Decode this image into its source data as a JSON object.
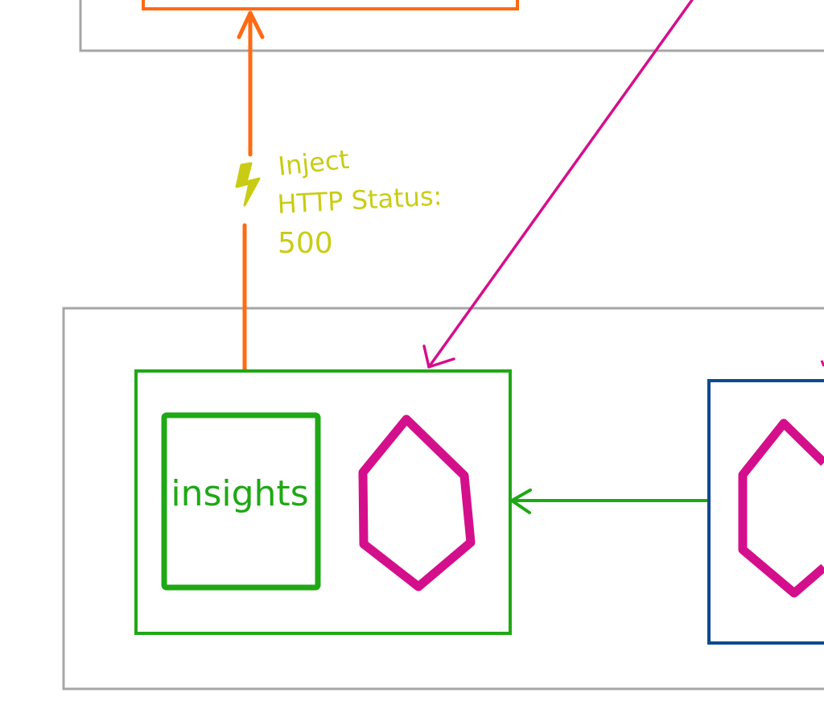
{
  "diagram": {
    "colors": {
      "container_border": "#a6a6a6",
      "request_arrow": "#ff6a13",
      "fault_label": "#c9cc14",
      "service_green": "#1fa815",
      "service_blue": "#0e4a8f",
      "pod_hexagon": "#d40f8c",
      "pink_arrow": "#d40f8c"
    },
    "fault_injection": {
      "icon": "lightning-bolt-icon",
      "label_line1": "Inject",
      "label_line2": "HTTP Status:",
      "label_line3": "500"
    },
    "insights_service": {
      "label": "insights",
      "pod_icon": "hexagon-icon"
    },
    "blue_service": {
      "pod_icon": "hexagon-icon"
    }
  }
}
